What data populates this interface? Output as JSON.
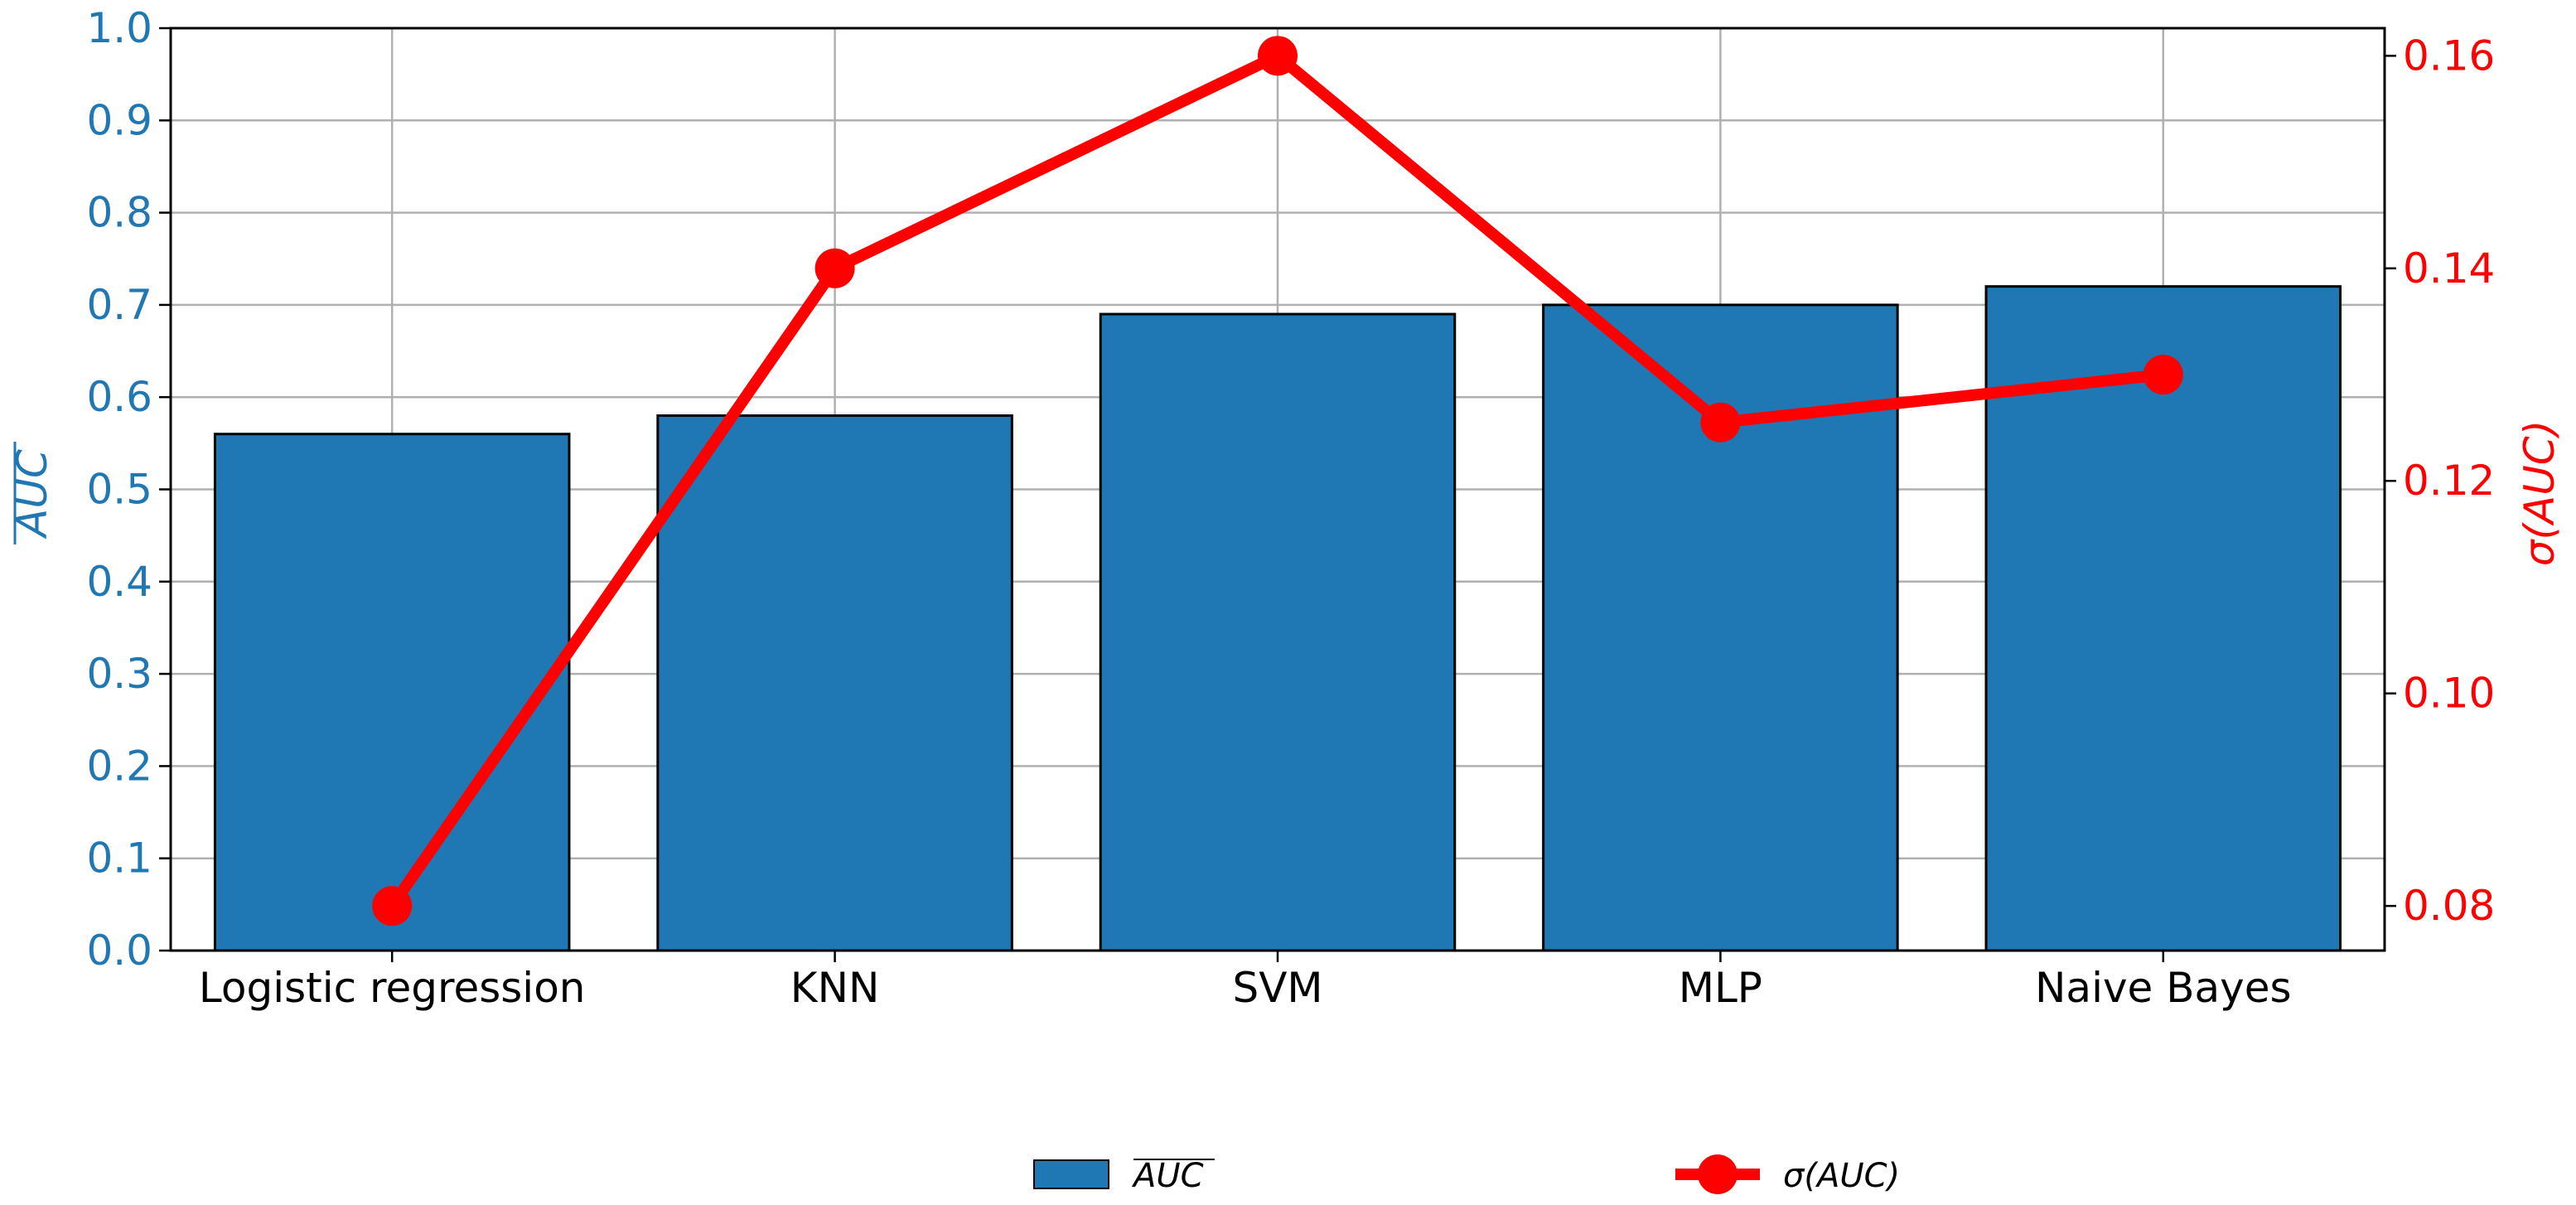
{
  "chart_data": {
    "type": "bar",
    "categories": [
      "Logistic regression",
      "KNN",
      "SVM",
      "MLP",
      "Naive Bayes"
    ],
    "series": [
      {
        "name": "AUC",
        "type": "bar",
        "axis": "left",
        "color": "#1f77b4",
        "values": [
          0.56,
          0.58,
          0.69,
          0.7,
          0.72
        ]
      },
      {
        "name": "σ(AUC)",
        "type": "line",
        "axis": "right",
        "color": "#ff0000",
        "values": [
          0.08,
          0.14,
          0.16,
          0.1255,
          0.13
        ]
      }
    ],
    "xlabel": "",
    "ylabel_left": "AUC",
    "ylabel_right": "σ(AUC)",
    "ylim_left": [
      0.0,
      1.0
    ],
    "ylim_right": [
      0.0758,
      0.1626
    ],
    "yticks_left": [
      "0.0",
      "0.1",
      "0.2",
      "0.3",
      "0.4",
      "0.5",
      "0.6",
      "0.7",
      "0.8",
      "0.9",
      "1.0"
    ],
    "yticks_right": [
      "0.08",
      "0.10",
      "0.12",
      "0.14",
      "0.16"
    ],
    "left_axis_color": "#1f77b4",
    "right_axis_color": "#ff0000",
    "grid": true,
    "legend": {
      "placement": "bottom-center",
      "entries": [
        {
          "label_main": "AUC",
          "overline": true,
          "marker": "bar"
        },
        {
          "label_main": "σ(AUC)",
          "overline": false,
          "marker": "line-dot"
        }
      ]
    }
  }
}
